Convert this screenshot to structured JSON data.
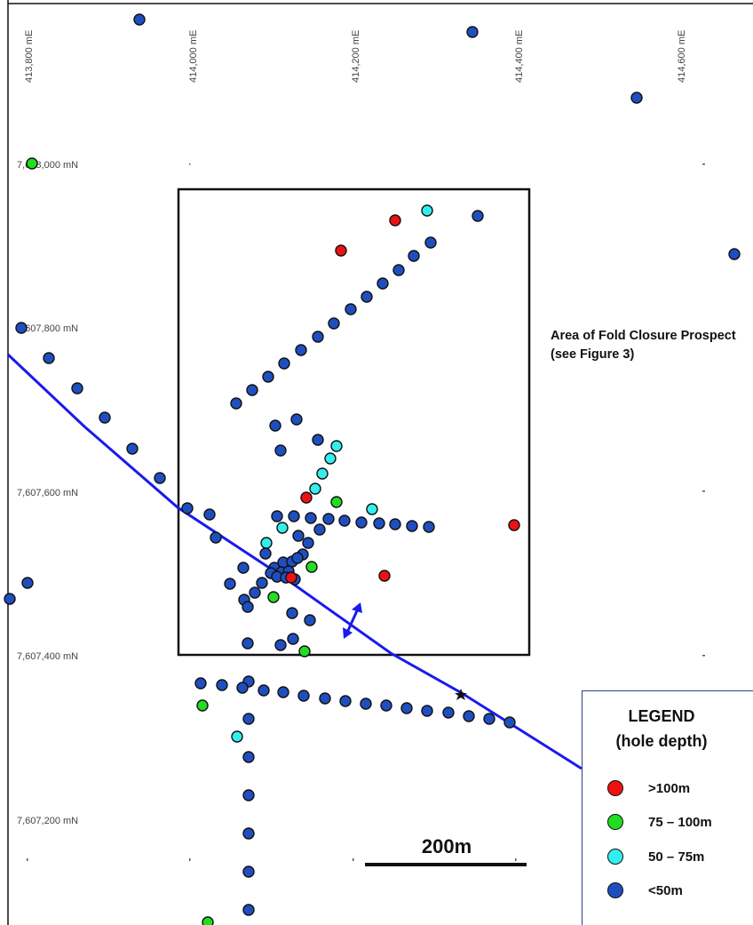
{
  "map": {
    "easting_labels": [
      "413,800 mE",
      "414,000 mE",
      "414,200 mE",
      "414,400 mE",
      "414,600 mE"
    ],
    "northing_labels": [
      "7,608,000 mN",
      "7,607,800 mN",
      "7,607,600 mN",
      "7,607,400 mN",
      "7,607,200 mN"
    ],
    "prospect_label": "Area of Fold Closure Prospect (see Figure 3)",
    "scale_bar_label": "200m",
    "colors": {
      "deep": "#ee1111",
      "medium": "#22dd22",
      "shallow": "#33eeee",
      "very_shallow": "#1f4fbf",
      "fold_axis": "#1a1aee"
    }
  },
  "legend": {
    "title_line1": "LEGEND",
    "title_line2": "(hole depth)",
    "items": [
      {
        "label": ">100m",
        "color": "#ee1111"
      },
      {
        "label": "75 – 100m",
        "color": "#22dd22"
      },
      {
        "label": "50 – 75m",
        "color": "#33eeee"
      },
      {
        "label": "<50m",
        "color": "#1f4fbf"
      }
    ]
  }
}
